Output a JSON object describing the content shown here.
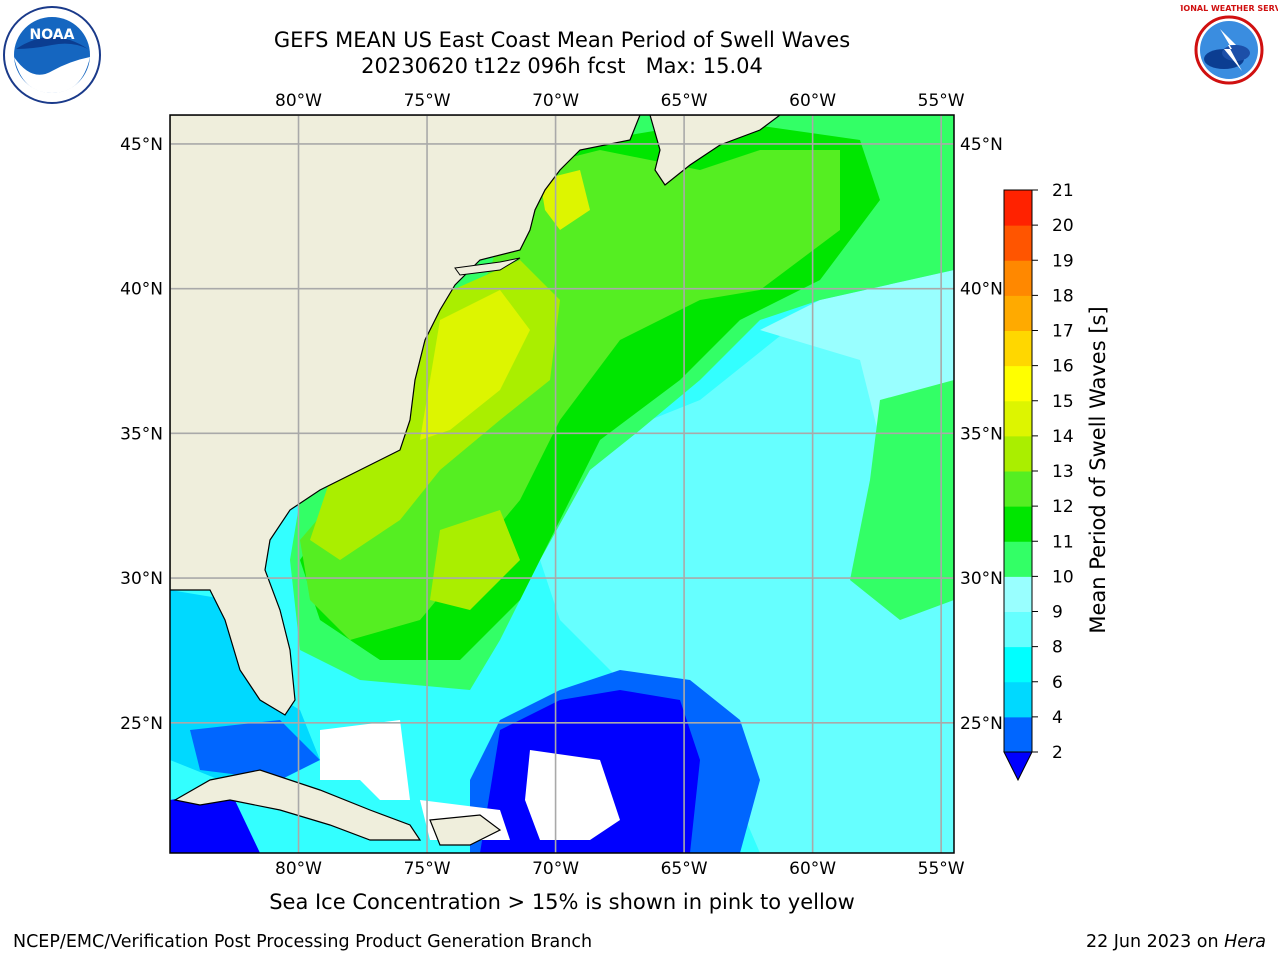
{
  "header": {
    "title_line1": "GEFS MEAN US East Coast Mean Period of Swell Waves",
    "run": "20230620 t12z 096h fcst",
    "max_label": "Max: 15.04"
  },
  "logos": {
    "left_text": "NOAA",
    "right_text": "NATIONAL WEATHER SERVICE"
  },
  "map": {
    "lon_ticks": [
      "80°W",
      "75°W",
      "70°W",
      "65°W",
      "60°W",
      "55°W"
    ],
    "lat_ticks": [
      "45°N",
      "40°N",
      "35°N",
      "30°N",
      "25°N"
    ],
    "lon_values": [
      -80,
      -75,
      -70,
      -65,
      -60,
      -55
    ],
    "lat_values": [
      45,
      40,
      35,
      30,
      25
    ],
    "lon_range": [
      -85,
      -54.5
    ],
    "lat_range": [
      20.5,
      46
    ],
    "colors": {
      "land": "#efeedc",
      "ocean_low": "#00ffff",
      "gridline": "#a9a9a9",
      "coast": "#000000"
    }
  },
  "colorbar": {
    "title": "Mean Period of Swell Waves [s]",
    "tick_labels": [
      "2",
      "4",
      "6",
      "8",
      "9",
      "10",
      "11",
      "12",
      "13",
      "14",
      "15",
      "16",
      "17",
      "18",
      "19",
      "20",
      "21"
    ],
    "bands": [
      "#0066ff",
      "#00d9ff",
      "#00ffff",
      "#66ffff",
      "#99ffff",
      "#33ff66",
      "#00e600",
      "#55ee22",
      "#aaee00",
      "#ddf500",
      "#ffff00",
      "#ffd700",
      "#ffaa00",
      "#ff8800",
      "#ff5500",
      "#ff2200"
    ],
    "extend_color": "#0000ff"
  },
  "caption": "Sea Ice Concentration > 15% is shown in pink to yellow",
  "footer": {
    "left": "NCEP/EMC/Verification Post Processing Product Generation Branch",
    "date": "22 Jun 2023 on ",
    "machine": "Hera"
  }
}
